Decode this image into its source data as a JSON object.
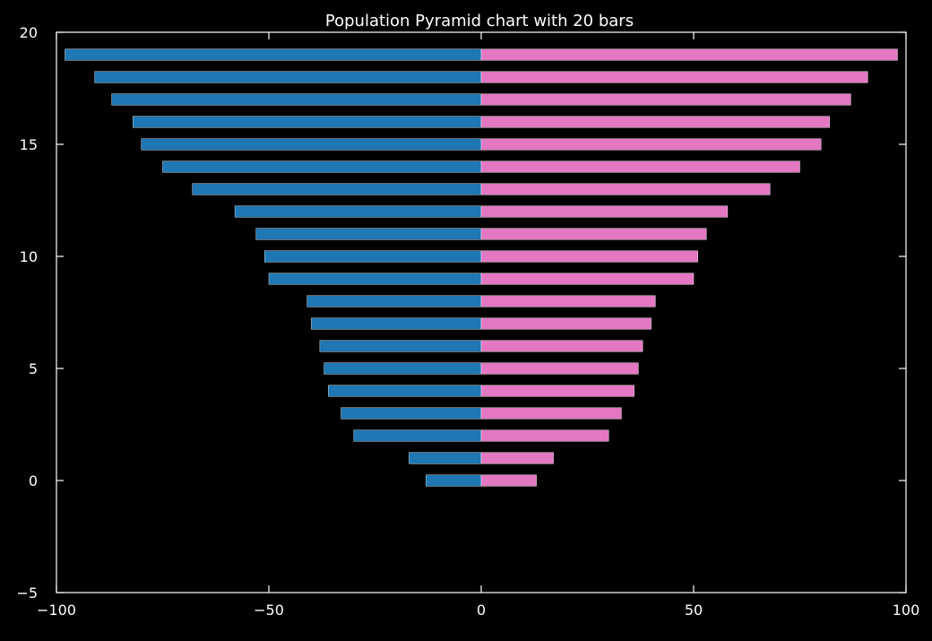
{
  "chart_data": {
    "type": "bar",
    "orientation": "horizontal",
    "title": "Population Pyramid chart with 20 bars",
    "xlabel": "",
    "ylabel": "",
    "xlim": [
      -100,
      100
    ],
    "ylim": [
      -5,
      20
    ],
    "xticks": [
      -100,
      -50,
      0,
      50,
      100
    ],
    "xtick_labels": [
      "−100",
      "−50",
      "0",
      "50",
      "100"
    ],
    "yticks": [
      -5,
      0,
      5,
      10,
      15,
      20
    ],
    "ytick_labels": [
      "−5",
      "0",
      "5",
      "10",
      "15",
      "20"
    ],
    "grid": false,
    "categories": [
      0,
      1,
      2,
      3,
      4,
      5,
      6,
      7,
      8,
      9,
      10,
      11,
      12,
      13,
      14,
      15,
      16,
      17,
      18,
      19
    ],
    "series": [
      {
        "color": "#1f77b4",
        "values": [
          -13,
          -17,
          -30,
          -33,
          -36,
          -37,
          -38,
          -40,
          -41,
          -50,
          -51,
          -53,
          -58,
          -68,
          -75,
          -80,
          -82,
          -87,
          -91,
          -98
        ]
      },
      {
        "color": "#e377c2",
        "values": [
          13,
          17,
          30,
          33,
          36,
          37,
          38,
          40,
          41,
          50,
          51,
          53,
          58,
          68,
          75,
          80,
          82,
          87,
          91,
          98
        ]
      }
    ],
    "axis_color": "#ffffff",
    "background": "#000000"
  }
}
